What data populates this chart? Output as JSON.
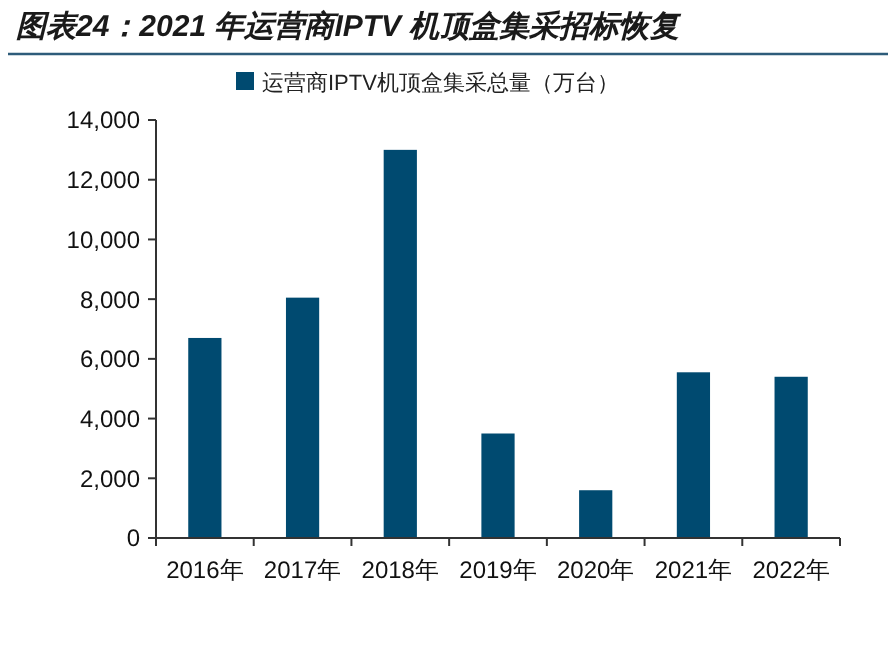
{
  "chart_data": {
    "type": "bar",
    "title": "图表24：2021 年运营商IPTV 机顶盒集采招标恢复",
    "categories": [
      "2016年",
      "2017年",
      "2018年",
      "2019年",
      "2020年",
      "2021年",
      "2022年"
    ],
    "series": [
      {
        "name": "运营商IPTV机顶盒集采总量（万台）",
        "color": "#004a70",
        "values": [
          6700,
          8050,
          13000,
          3500,
          1600,
          5550,
          5400
        ]
      }
    ],
    "ylim": [
      0,
      14000
    ],
    "yticks": [
      {
        "value": 0,
        "label": "0"
      },
      {
        "value": 2000,
        "label": "2,000"
      },
      {
        "value": 4000,
        "label": "4,000"
      },
      {
        "value": 6000,
        "label": "6,000"
      },
      {
        "value": 8000,
        "label": "8,000"
      },
      {
        "value": 10000,
        "label": "10,000"
      },
      {
        "value": 12000,
        "label": "12,000"
      },
      {
        "value": 14000,
        "label": "14,000"
      }
    ],
    "legend": "top",
    "grid": false
  }
}
